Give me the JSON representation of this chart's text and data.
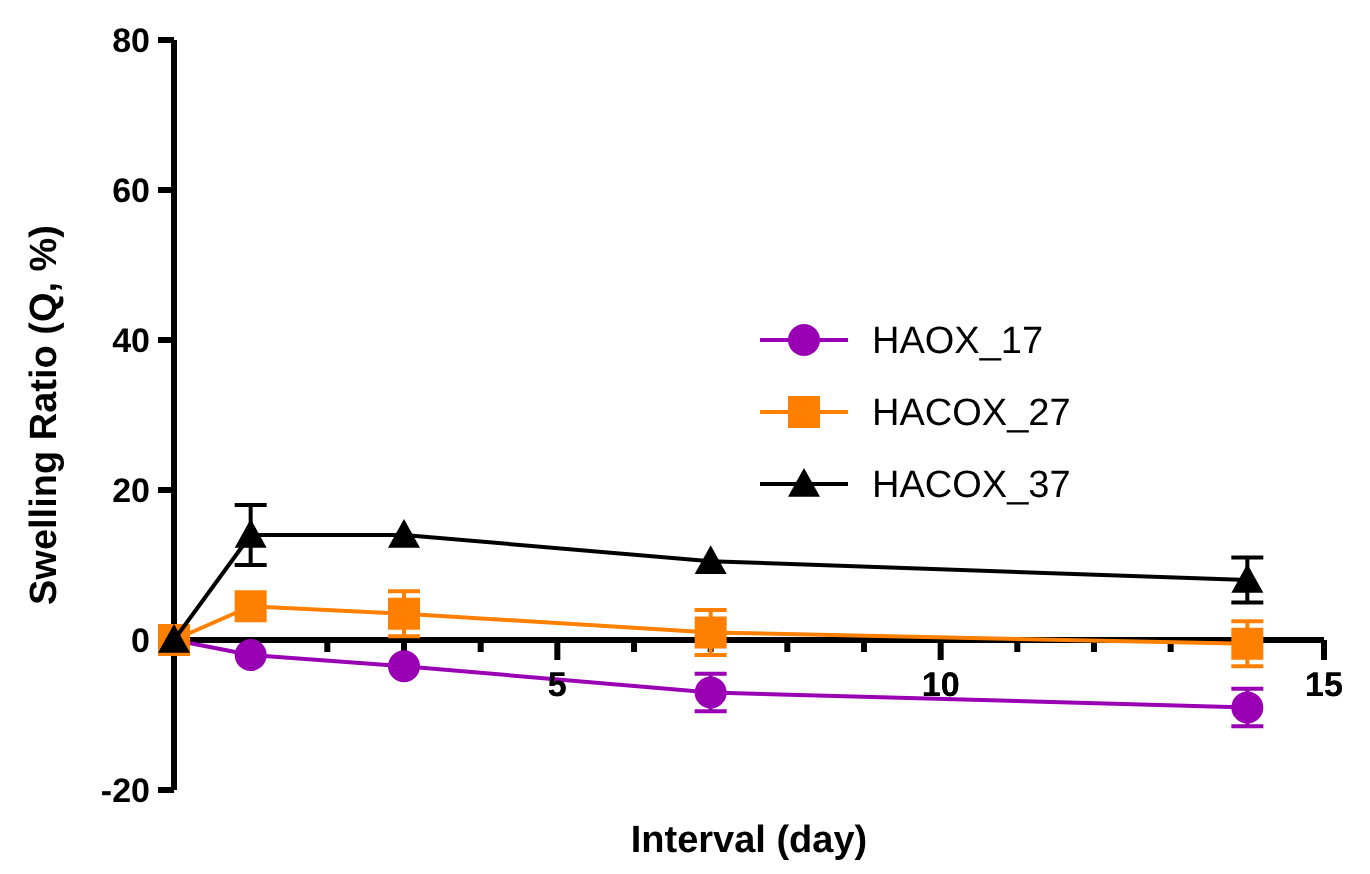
{
  "chart_data": {
    "type": "line",
    "xlabel": "Interval (day)",
    "ylabel": "Swelling Ratio (Q, %)",
    "x": [
      0,
      1,
      3,
      7,
      14
    ],
    "xlim": [
      0,
      15
    ],
    "xticks": [
      {
        "value": 0,
        "label": null
      },
      {
        "value": 1,
        "label": null
      },
      {
        "value": 2,
        "label": null
      },
      {
        "value": 3,
        "label": null
      },
      {
        "value": 4,
        "label": null
      },
      5,
      {
        "value": 6,
        "label": null
      },
      {
        "value": 7,
        "label": null
      },
      {
        "value": 8,
        "label": null
      },
      {
        "value": 9,
        "label": null
      },
      10,
      {
        "value": 11,
        "label": null
      },
      {
        "value": 12,
        "label": null
      },
      {
        "value": 13,
        "label": null
      },
      {
        "value": 14,
        "label": null
      },
      15
    ],
    "ylim": [
      -20,
      80
    ],
    "yticks": [
      -20,
      0,
      20,
      40,
      60,
      80
    ],
    "legend": "right",
    "grid": false,
    "series": [
      {
        "name": "HAOX_17",
        "color": "#9900b3",
        "marker": "circle",
        "values": [
          0,
          -2,
          -3.5,
          -7,
          -9
        ],
        "errors": [
          null,
          null,
          null,
          2.5,
          2.5
        ]
      },
      {
        "name": "HACOX_27",
        "color": "#ff8000",
        "marker": "square",
        "values": [
          0,
          4.5,
          3.5,
          1,
          -0.5
        ],
        "errors": [
          null,
          null,
          3,
          3,
          3
        ]
      },
      {
        "name": "HACOX_37",
        "color": "#000000",
        "marker": "triangle",
        "values": [
          0,
          14,
          14,
          10.5,
          8
        ],
        "errors": [
          null,
          4,
          null,
          null,
          3
        ]
      }
    ]
  }
}
